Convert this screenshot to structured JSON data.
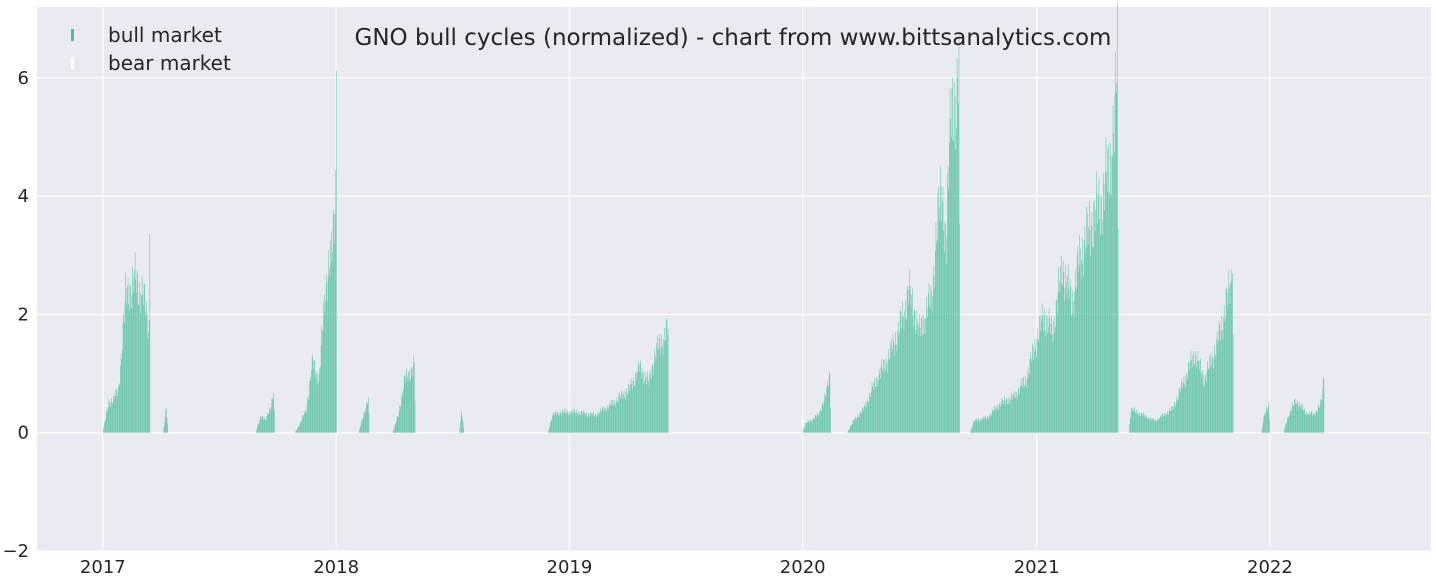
{
  "chart_data": {
    "type": "bar",
    "title": "GNO bull cycles (normalized)  - chart from www.bittsanalytics.com",
    "xlabel": "",
    "ylabel": "",
    "xlim": [
      "2016-09-20",
      "2022-09-10"
    ],
    "ylim": [
      -2,
      7.2
    ],
    "grid": true,
    "legend_position": "top-left",
    "x_ticks": [
      {
        "date": "2017-01-01",
        "label": "2017"
      },
      {
        "date": "2018-01-01",
        "label": "2018"
      },
      {
        "date": "2019-01-01",
        "label": "2019"
      },
      {
        "date": "2020-01-01",
        "label": "2020"
      },
      {
        "date": "2021-01-01",
        "label": "2021"
      },
      {
        "date": "2022-01-01",
        "label": "2022"
      }
    ],
    "y_ticks": [
      {
        "value": -2,
        "label": "−2"
      },
      {
        "value": 0,
        "label": "0"
      },
      {
        "value": 2,
        "label": "2"
      },
      {
        "value": 4,
        "label": "4"
      },
      {
        "value": 6,
        "label": "6"
      }
    ],
    "legend": [
      {
        "name": "bull market",
        "color": "#4dbf9f"
      },
      {
        "name": "bear market",
        "color": "#ffffff"
      }
    ],
    "series": [
      {
        "name": "bull market",
        "color": "#4dbf9f",
        "segments": [
          {
            "points": [
              [
                "2016-12-31",
                0.0
              ],
              [
                "2017-01-10",
                0.5
              ],
              [
                "2017-01-25",
                0.7
              ],
              [
                "2017-02-05",
                2.3
              ],
              [
                "2017-02-20",
                2.6
              ],
              [
                "2017-03-05",
                2.3
              ],
              [
                "2017-03-14",
                1.8
              ],
              [
                "2017-03-15",
                3.58
              ],
              [
                "2017-03-16",
                0.0
              ]
            ]
          },
          {
            "points": [
              [
                "2017-04-05",
                0.0
              ],
              [
                "2017-04-10",
                0.45
              ],
              [
                "2017-04-13",
                0.0
              ]
            ]
          },
          {
            "points": [
              [
                "2017-08-28",
                0.0
              ],
              [
                "2017-09-05",
                0.3
              ],
              [
                "2017-09-12",
                0.2
              ],
              [
                "2017-09-20",
                0.45
              ],
              [
                "2017-09-25",
                0.65
              ],
              [
                "2017-09-27",
                0.0
              ]
            ]
          },
          {
            "points": [
              [
                "2017-10-28",
                0.0
              ],
              [
                "2017-11-05",
                0.15
              ],
              [
                "2017-11-15",
                0.4
              ],
              [
                "2017-11-25",
                1.2
              ],
              [
                "2017-12-05",
                0.9
              ],
              [
                "2017-12-15",
                2.5
              ],
              [
                "2017-12-25",
                3.0
              ],
              [
                "2017-12-31",
                4.2
              ],
              [
                "2018-01-01",
                6.55
              ],
              [
                "2018-01-02",
                0.0
              ]
            ]
          },
          {
            "points": [
              [
                "2018-02-05",
                0.0
              ],
              [
                "2018-02-12",
                0.3
              ],
              [
                "2018-02-20",
                0.55
              ],
              [
                "2018-02-22",
                0.0
              ]
            ]
          },
          {
            "points": [
              [
                "2018-03-30",
                0.0
              ],
              [
                "2018-04-08",
                0.3
              ],
              [
                "2018-04-18",
                0.9
              ],
              [
                "2018-04-28",
                1.05
              ],
              [
                "2018-05-03",
                1.15
              ],
              [
                "2018-05-05",
                0.0
              ]
            ]
          },
          {
            "points": [
              [
                "2018-07-12",
                0.0
              ],
              [
                "2018-07-16",
                0.35
              ],
              [
                "2018-07-20",
                0.0
              ]
            ]
          },
          {
            "points": [
              [
                "2018-11-28",
                0.0
              ],
              [
                "2018-12-05",
                0.3
              ],
              [
                "2018-12-20",
                0.35
              ],
              [
                "2019-01-10",
                0.35
              ],
              [
                "2019-02-10",
                0.3
              ],
              [
                "2019-03-10",
                0.5
              ],
              [
                "2019-04-05",
                0.75
              ],
              [
                "2019-04-20",
                1.1
              ],
              [
                "2019-05-05",
                0.85
              ],
              [
                "2019-05-15",
                1.35
              ],
              [
                "2019-06-04",
                1.75
              ],
              [
                "2019-06-05",
                0.0
              ]
            ]
          },
          {
            "points": [
              [
                "2019-12-31",
                0.0
              ],
              [
                "2020-01-05",
                0.15
              ],
              [
                "2020-01-25",
                0.3
              ],
              [
                "2020-02-05",
                0.6
              ],
              [
                "2020-02-12",
                1.0
              ],
              [
                "2020-02-14",
                0.0
              ]
            ]
          },
          {
            "points": [
              [
                "2020-03-10",
                0.0
              ],
              [
                "2020-03-20",
                0.2
              ],
              [
                "2020-04-05",
                0.4
              ],
              [
                "2020-04-25",
                0.9
              ],
              [
                "2020-05-15",
                1.3
              ],
              [
                "2020-06-01",
                1.8
              ],
              [
                "2020-06-15",
                2.4
              ],
              [
                "2020-07-01",
                1.7
              ],
              [
                "2020-07-20",
                2.3
              ],
              [
                "2020-08-05",
                4.3
              ],
              [
                "2020-08-12",
                3.0
              ],
              [
                "2020-08-20",
                6.0
              ],
              [
                "2020-08-28",
                5.0
              ],
              [
                "2020-09-01",
                6.5
              ],
              [
                "2020-09-03",
                0.0
              ]
            ]
          },
          {
            "points": [
              [
                "2020-09-18",
                0.0
              ],
              [
                "2020-09-25",
                0.2
              ],
              [
                "2020-10-15",
                0.25
              ],
              [
                "2020-11-05",
                0.5
              ],
              [
                "2020-11-25",
                0.6
              ],
              [
                "2020-12-15",
                0.9
              ],
              [
                "2021-01-01",
                1.6
              ],
              [
                "2021-01-12",
                2.0
              ],
              [
                "2021-01-25",
                1.7
              ],
              [
                "2021-02-10",
                2.8
              ],
              [
                "2021-02-25",
                2.2
              ],
              [
                "2021-03-10",
                3.0
              ],
              [
                "2021-04-01",
                3.7
              ],
              [
                "2021-04-15",
                4.0
              ],
              [
                "2021-04-25",
                4.6
              ],
              [
                "2021-05-03",
                5.2
              ],
              [
                "2021-05-07",
                6.55
              ],
              [
                "2021-05-09",
                0.0
              ]
            ]
          },
          {
            "points": [
              [
                "2021-05-25",
                0.0
              ],
              [
                "2021-05-28",
                0.4
              ],
              [
                "2021-06-15",
                0.3
              ],
              [
                "2021-07-05",
                0.2
              ],
              [
                "2021-08-01",
                0.4
              ],
              [
                "2021-08-20",
                0.9
              ],
              [
                "2021-09-05",
                1.35
              ],
              [
                "2021-09-20",
                0.9
              ],
              [
                "2021-10-10",
                1.5
              ],
              [
                "2021-10-25",
                2.2
              ],
              [
                "2021-11-01",
                2.6
              ],
              [
                "2021-11-03",
                3.2
              ],
              [
                "2021-11-05",
                0.0
              ]
            ]
          },
          {
            "points": [
              [
                "2021-12-18",
                0.0
              ],
              [
                "2021-12-22",
                0.25
              ],
              [
                "2021-12-30",
                0.5
              ],
              [
                "2022-01-01",
                0.0
              ]
            ]
          },
          {
            "points": [
              [
                "2022-01-22",
                0.0
              ],
              [
                "2022-01-28",
                0.25
              ],
              [
                "2022-02-10",
                0.55
              ],
              [
                "2022-02-25",
                0.35
              ],
              [
                "2022-03-10",
                0.3
              ],
              [
                "2022-03-22",
                0.5
              ],
              [
                "2022-03-26",
                0.95
              ],
              [
                "2022-03-27",
                0.0
              ]
            ]
          }
        ]
      },
      {
        "name": "bear market",
        "color": "#ffffff",
        "segments": []
      }
    ]
  }
}
